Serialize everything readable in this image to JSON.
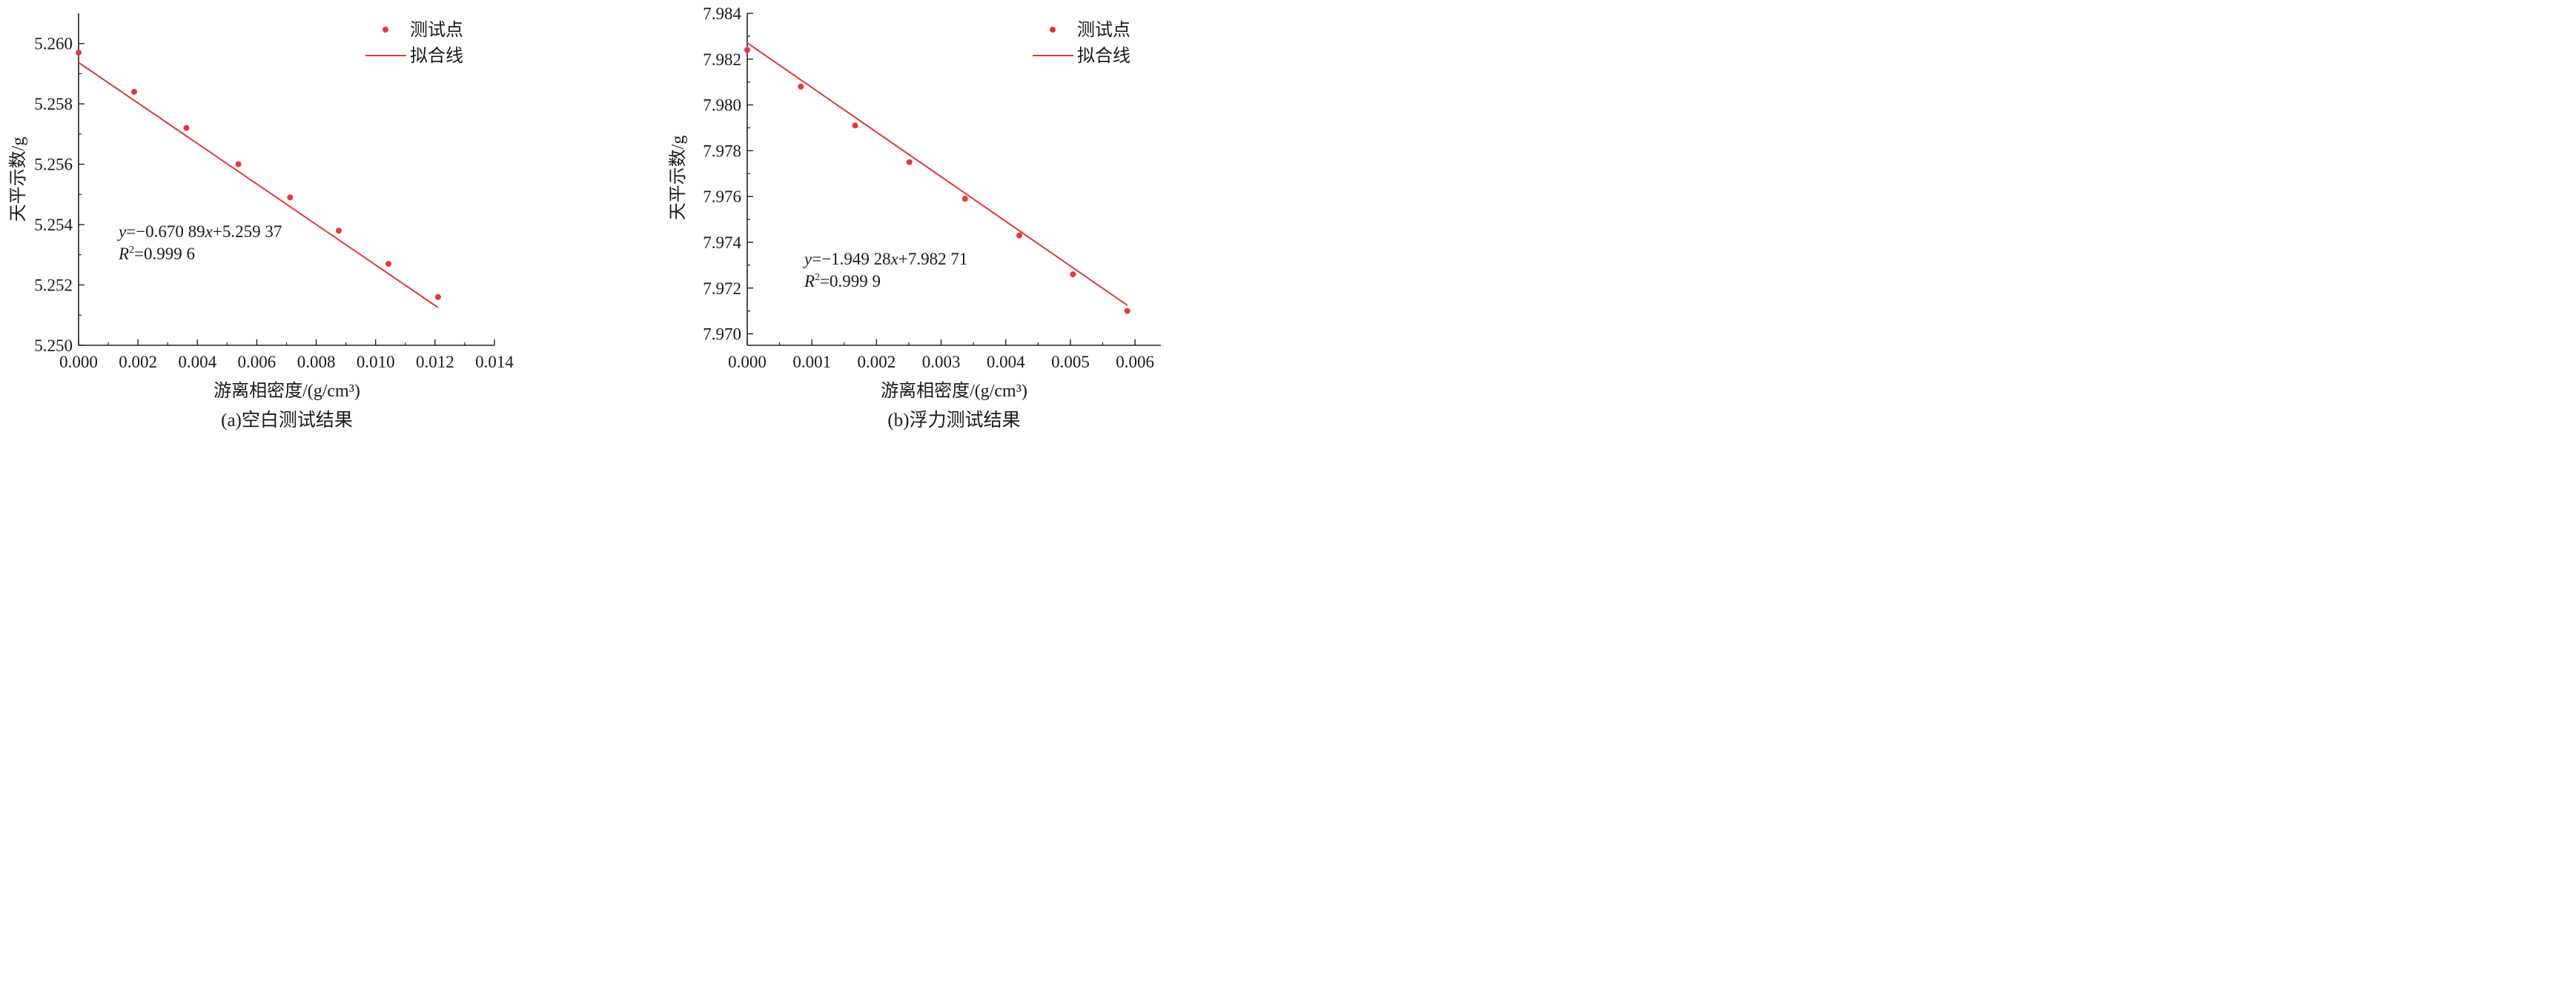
{
  "chart_data": [
    {
      "type": "scatter",
      "caption": "(a)空白测试结果",
      "xlabel": "游离相密度/(g/cm³)",
      "ylabel": "天平示数/g",
      "xlim": [
        0,
        0.014
      ],
      "ylim": [
        5.25,
        5.261
      ],
      "x_ticks": [
        "0.000",
        "0.002",
        "0.004",
        "0.006",
        "0.008",
        "0.010",
        "0.012",
        "0.014"
      ],
      "y_ticks": [
        "5.250",
        "5.252",
        "5.254",
        "5.256",
        "5.258",
        "5.260"
      ],
      "legend": {
        "position": "top-right",
        "points_label": "测试点",
        "line_label": "拟合线"
      },
      "equation": {
        "y_var": "y",
        "eq_body": "=−0.670 89",
        "x_var": "x",
        "eq_tail": "+5.259 37",
        "r_var": "R",
        "r_sup": "2",
        "r_value": "=0.999 6"
      },
      "fit": {
        "slope": -0.67089,
        "intercept": 5.25937
      },
      "series": [
        {
          "x": [
            0.0,
            0.00187,
            0.00363,
            0.00538,
            0.00712,
            0.00876,
            0.01043,
            0.0121
          ],
          "y": [
            5.2597,
            5.2584,
            5.2572,
            5.256,
            5.2549,
            5.2538,
            5.2527,
            5.2516
          ]
        }
      ],
      "colors": {
        "points": "#e03a3a",
        "line": "#e03a3a"
      }
    },
    {
      "type": "scatter",
      "caption": "(b)浮力测试结果",
      "xlabel": "游离相密度/(g/cm³)",
      "ylabel": "天平示数/g",
      "xlim": [
        0,
        0.0064
      ],
      "ylim": [
        7.9695,
        7.984
      ],
      "x_ticks": [
        "0.000",
        "0.001",
        "0.002",
        "0.003",
        "0.004",
        "0.005",
        "0.006"
      ],
      "y_ticks": [
        "7.970",
        "7.972",
        "7.974",
        "7.976",
        "7.978",
        "7.980",
        "7.982",
        "7.984"
      ],
      "legend": {
        "position": "top-right",
        "points_label": "测试点",
        "line_label": "拟合线"
      },
      "equation": {
        "y_var": "y",
        "eq_body": "=−1.949 28",
        "x_var": "x",
        "eq_tail": "+7.982 71",
        "r_var": "R",
        "r_sup": "2",
        "r_value": "=0.999 9"
      },
      "fit": {
        "slope": -1.94928,
        "intercept": 7.98271
      },
      "series": [
        {
          "x": [
            0.0,
            0.00083,
            0.00167,
            0.00251,
            0.00337,
            0.00421,
            0.00504,
            0.00588
          ],
          "y": [
            7.9824,
            7.9808,
            7.9791,
            7.9775,
            7.9759,
            7.9743,
            7.9726,
            7.971
          ]
        }
      ],
      "colors": {
        "points": "#e03a3a",
        "line": "#e03a3a"
      }
    }
  ]
}
